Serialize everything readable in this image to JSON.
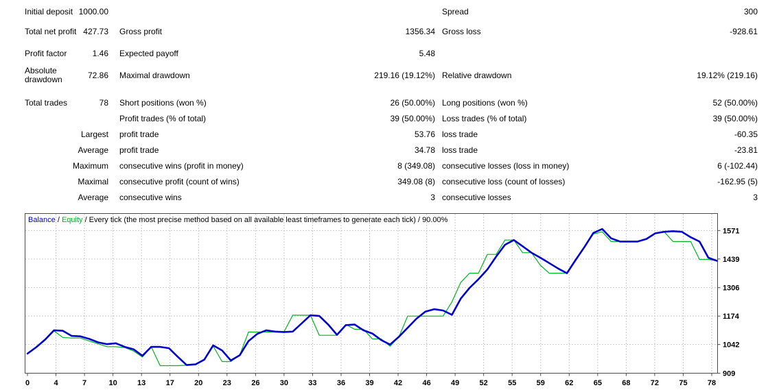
{
  "colors": {
    "balance": "#0000CD",
    "equity": "#00B422",
    "grid": "#C9C9C9",
    "border": "#4A4A4A",
    "text": "#000000",
    "background": "#FFFFFF"
  },
  "stats_table": {
    "rows": [
      [
        "Initial deposit",
        "1000.00",
        "",
        "",
        "Spread",
        "300"
      ],
      [
        "Total net profit",
        "427.73",
        "Gross profit",
        "1356.34",
        "Gross loss",
        "-928.61"
      ],
      [
        "Profit factor",
        "1.46",
        "Expected payoff",
        "5.48",
        "",
        ""
      ],
      [
        "Absolute drawdown",
        "72.86",
        "Maximal drawdown",
        "219.16 (19.12%)",
        "Relative drawdown",
        "19.12% (219.16)"
      ],
      [
        "Total trades",
        "78",
        "Short positions (won %)",
        "26 (50.00%)",
        "Long positions (won %)",
        "52 (50.00%)"
      ],
      [
        "",
        "",
        "Profit trades (% of total)",
        "39 (50.00%)",
        "Loss trades (% of total)",
        "39 (50.00%)"
      ],
      [
        "",
        "Largest",
        "profit trade",
        "53.76",
        "loss trade",
        "-60.35"
      ],
      [
        "",
        "Average",
        "profit trade",
        "34.78",
        "loss trade",
        "-23.81"
      ],
      [
        "",
        "Maximum",
        "consecutive wins (profit in money)",
        "8 (349.08)",
        "consecutive losses (loss in money)",
        "6 (-102.44)"
      ],
      [
        "",
        "Maximal",
        "consecutive profit (count of wins)",
        "349.08 (8)",
        "consecutive loss (count of losses)",
        "-162.95 (5)"
      ],
      [
        "",
        "Average",
        "consecutive wins",
        "3",
        "consecutive losses",
        "3"
      ]
    ]
  },
  "chart_data": {
    "type": "line",
    "legend": [
      {
        "text": "Balance",
        "color": "#0000CD"
      },
      {
        "text": " / ",
        "color": "#000000"
      },
      {
        "text": "Equity",
        "color": "#00B422"
      },
      {
        "text": " / Every tick (the most precise method based on all available least timeframes to generate each tick) / 90.00%",
        "color": "#000000"
      }
    ],
    "xlim": [
      0,
      78
    ],
    "ylim": [
      909,
      1650
    ],
    "grid": true,
    "x_tick_labels": [
      "0",
      "4",
      "7",
      "10",
      "13",
      "17",
      "20",
      "23",
      "26",
      "30",
      "33",
      "36",
      "39",
      "42",
      "46",
      "49",
      "52",
      "55",
      "59",
      "62",
      "65",
      "68",
      "72",
      "75",
      "78"
    ],
    "y_tick_labels": [
      1571,
      1439,
      1306,
      1174,
      1042,
      909
    ],
    "y_gridlines": [
      1042,
      1174,
      1306,
      1439,
      1571
    ],
    "series": [
      {
        "name": "Equity",
        "color": "#00B422",
        "width": 1.2,
        "values": [
          1000,
          1030,
          1062,
          1105,
          1075,
          1072,
          1072,
          1058,
          1045,
          1032,
          1032,
          1028,
          1012,
          984,
          1031,
          944,
          944,
          944,
          946,
          950,
          972,
          1035,
          963,
          963,
          992,
          1100,
          1100,
          1100,
          1100,
          1100,
          1178,
          1178,
          1178,
          1085,
          1085,
          1085,
          1135,
          1113,
          1113,
          1068,
          1068,
          1034,
          1078,
          1174,
          1174,
          1174,
          1174,
          1174,
          1240,
          1330,
          1373,
          1373,
          1460,
          1460,
          1527,
          1527,
          1468,
          1468,
          1410,
          1373,
          1373,
          1373,
          1435,
          1495,
          1555,
          1565,
          1520,
          1520,
          1520,
          1520,
          1532,
          1558,
          1565,
          1520,
          1520,
          1520,
          1437,
          1437,
          1430
        ]
      },
      {
        "name": "Balance",
        "color": "#0000CD",
        "width": 2.6,
        "values": [
          1000,
          1030,
          1065,
          1108,
          1106,
          1082,
          1080,
          1068,
          1052,
          1044,
          1048,
          1031,
          1020,
          990,
          1031,
          1031,
          1025,
          985,
          947,
          950,
          972,
          1038,
          1015,
          968,
          992,
          1058,
          1092,
          1108,
          1102,
          1100,
          1102,
          1140,
          1178,
          1175,
          1135,
          1087,
          1132,
          1135,
          1108,
          1093,
          1063,
          1042,
          1078,
          1120,
          1162,
          1195,
          1206,
          1200,
          1180,
          1255,
          1305,
          1345,
          1390,
          1450,
          1505,
          1527,
          1498,
          1468,
          1445,
          1420,
          1395,
          1373,
          1435,
          1495,
          1560,
          1578,
          1535,
          1520,
          1520,
          1520,
          1532,
          1558,
          1565,
          1568,
          1565,
          1540,
          1520,
          1445,
          1430
        ]
      }
    ]
  }
}
